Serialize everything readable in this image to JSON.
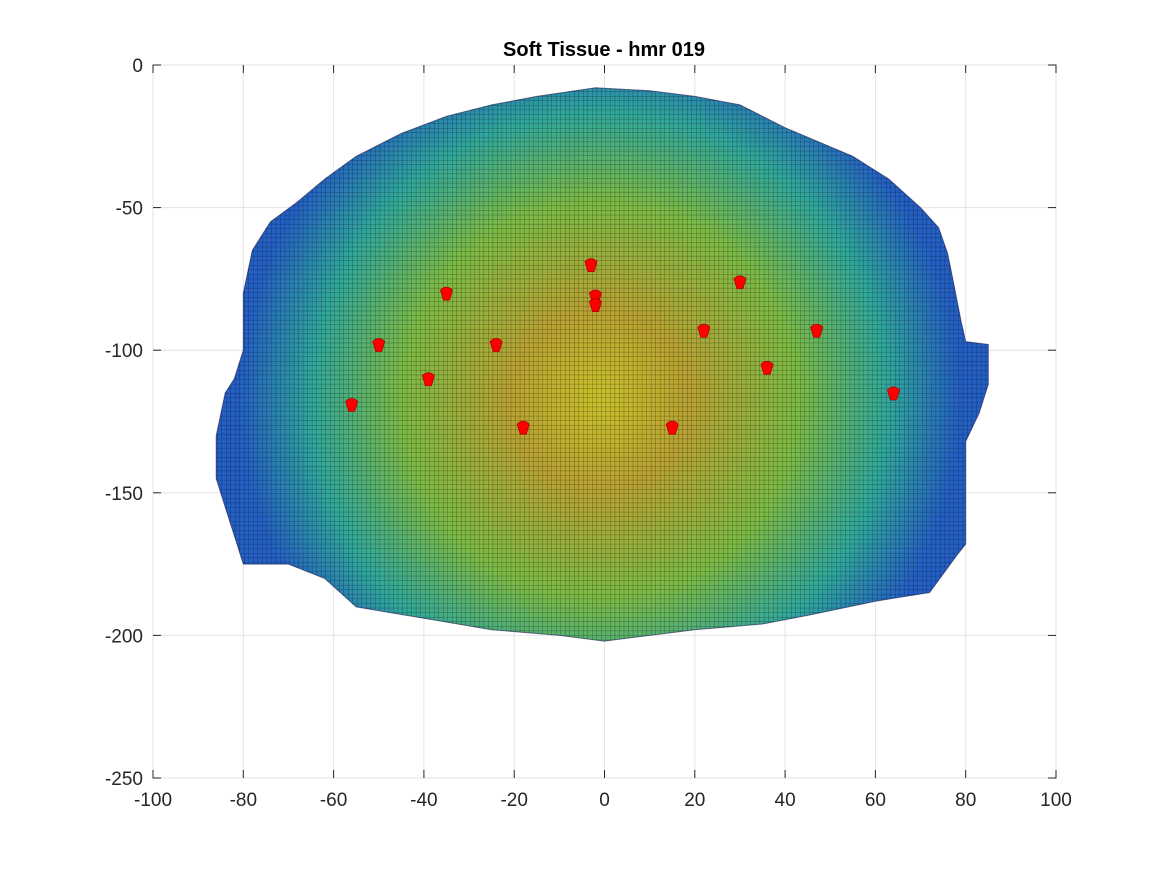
{
  "chart_data": {
    "type": "scatter",
    "title": "Soft Tissue -  hmr 019",
    "xlabel": "",
    "ylabel": "",
    "xlim": [
      -100,
      100
    ],
    "ylim": [
      -250,
      0
    ],
    "xticks": [
      -100,
      -80,
      -60,
      -40,
      -20,
      0,
      20,
      40,
      60,
      80,
      100
    ],
    "yticks": [
      0,
      -50,
      -100,
      -150,
      -200,
      -250
    ],
    "grid": true,
    "surface": {
      "description_colormap": "parula",
      "outline": [
        [
          -2,
          -8
        ],
        [
          10,
          -9
        ],
        [
          20,
          -11
        ],
        [
          30,
          -14
        ],
        [
          40,
          -22
        ],
        [
          55,
          -32
        ],
        [
          63,
          -40
        ],
        [
          70,
          -50
        ],
        [
          74,
          -57
        ],
        [
          76,
          -66
        ],
        [
          77,
          -74
        ],
        [
          78,
          -82
        ],
        [
          79,
          -90
        ],
        [
          80,
          -97
        ],
        [
          85,
          -98
        ],
        [
          85,
          -112
        ],
        [
          83,
          -122
        ],
        [
          80,
          -132
        ],
        [
          80,
          -148
        ],
        [
          80,
          -168
        ],
        [
          78,
          -172
        ],
        [
          72,
          -185
        ],
        [
          60,
          -188
        ],
        [
          45,
          -193
        ],
        [
          35,
          -196
        ],
        [
          20,
          -198
        ],
        [
          10,
          -200
        ],
        [
          0,
          -202
        ],
        [
          -10,
          -200
        ],
        [
          -25,
          -198
        ],
        [
          -40,
          -194
        ],
        [
          -55,
          -190
        ],
        [
          -62,
          -180
        ],
        [
          -70,
          -175
        ],
        [
          -80,
          -175
        ],
        [
          -82,
          -165
        ],
        [
          -84,
          -155
        ],
        [
          -86,
          -145
        ],
        [
          -86,
          -130
        ],
        [
          -84,
          -115
        ],
        [
          -82,
          -110
        ],
        [
          -80,
          -100
        ],
        [
          -80,
          -80
        ],
        [
          -78,
          -65
        ],
        [
          -74,
          -55
        ],
        [
          -68,
          -48
        ],
        [
          -62,
          -40
        ],
        [
          -55,
          -32
        ],
        [
          -45,
          -24
        ],
        [
          -35,
          -18
        ],
        [
          -25,
          -14
        ],
        [
          -15,
          -11
        ],
        [
          -2,
          -8
        ]
      ]
    },
    "markers": {
      "color": "#ff0000",
      "points": [
        [
          -3,
          -70
        ],
        [
          -2,
          -81
        ],
        [
          -2,
          -84
        ],
        [
          30,
          -76
        ],
        [
          -35,
          -80
        ],
        [
          22,
          -93
        ],
        [
          47,
          -93
        ],
        [
          -50,
          -98
        ],
        [
          -24,
          -98
        ],
        [
          36,
          -106
        ],
        [
          -39,
          -110
        ],
        [
          64,
          -115
        ],
        [
          -56,
          -119
        ],
        [
          -18,
          -127
        ],
        [
          15,
          -127
        ]
      ]
    }
  }
}
